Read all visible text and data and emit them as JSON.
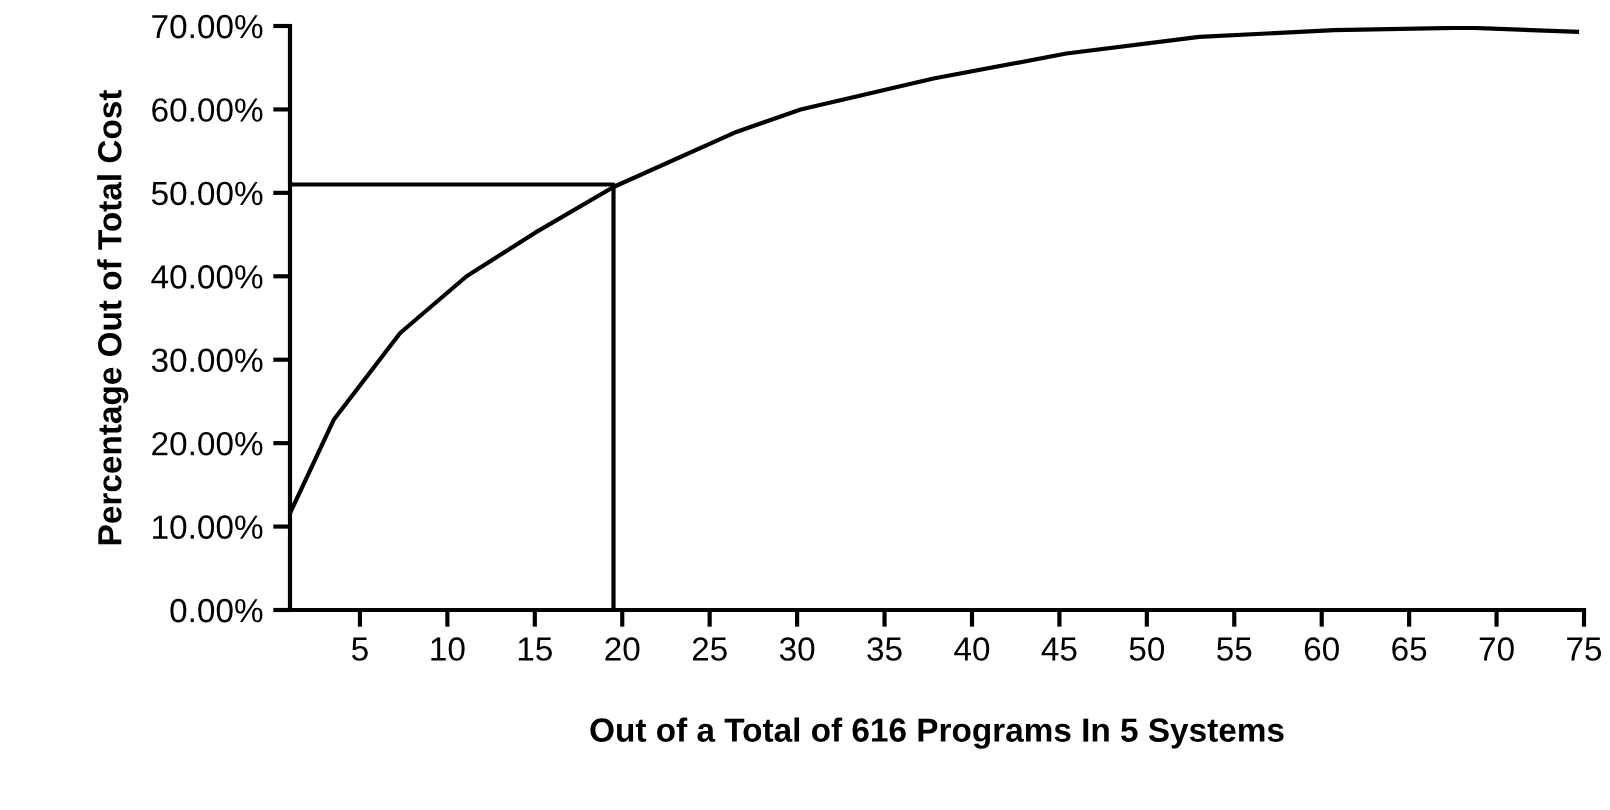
{
  "chart_data": {
    "type": "line",
    "xlabel": "Out of a Total of 616 Programs In 5 Systems",
    "ylabel": "Percentage Out of Total Cost",
    "series": [
      {
        "color": "#000000",
        "x": [
          1,
          3.5,
          7.3,
          11.1,
          15,
          19.5,
          26.4,
          30.2,
          37.8,
          45.4,
          53,
          60.7,
          68.3,
          74.6
        ],
        "values": [
          11.6,
          22.8,
          33.2,
          40,
          45.2,
          50.7,
          57.2,
          60,
          63.7,
          66.7,
          68.7,
          69.5,
          69.8,
          69.3
        ]
      },
      {
        "color": "#000000",
        "x": [
          1,
          19.5,
          19.5
        ],
        "values": [
          51,
          51,
          0
        ]
      }
    ],
    "xlim": [
      1,
      75
    ],
    "xticks": [
      5,
      10,
      15,
      20,
      25,
      30,
      35,
      40,
      45,
      50,
      55,
      60,
      65,
      70,
      75
    ],
    "ylim": [
      0,
      70
    ],
    "yticks": [
      {
        "value": 0,
        "label": "0.00%"
      },
      {
        "value": 10,
        "label": "10.00%"
      },
      {
        "value": 20,
        "label": "20.00%"
      },
      {
        "value": 30,
        "label": "30.00%"
      },
      {
        "value": 40,
        "label": "40.00%"
      },
      {
        "value": 50,
        "label": "50.00%"
      },
      {
        "value": 60,
        "label": "60.00%"
      },
      {
        "value": 70,
        "label": "70.00%"
      }
    ],
    "grid": false,
    "legend": false,
    "marker": "none",
    "line_style": "solid"
  }
}
